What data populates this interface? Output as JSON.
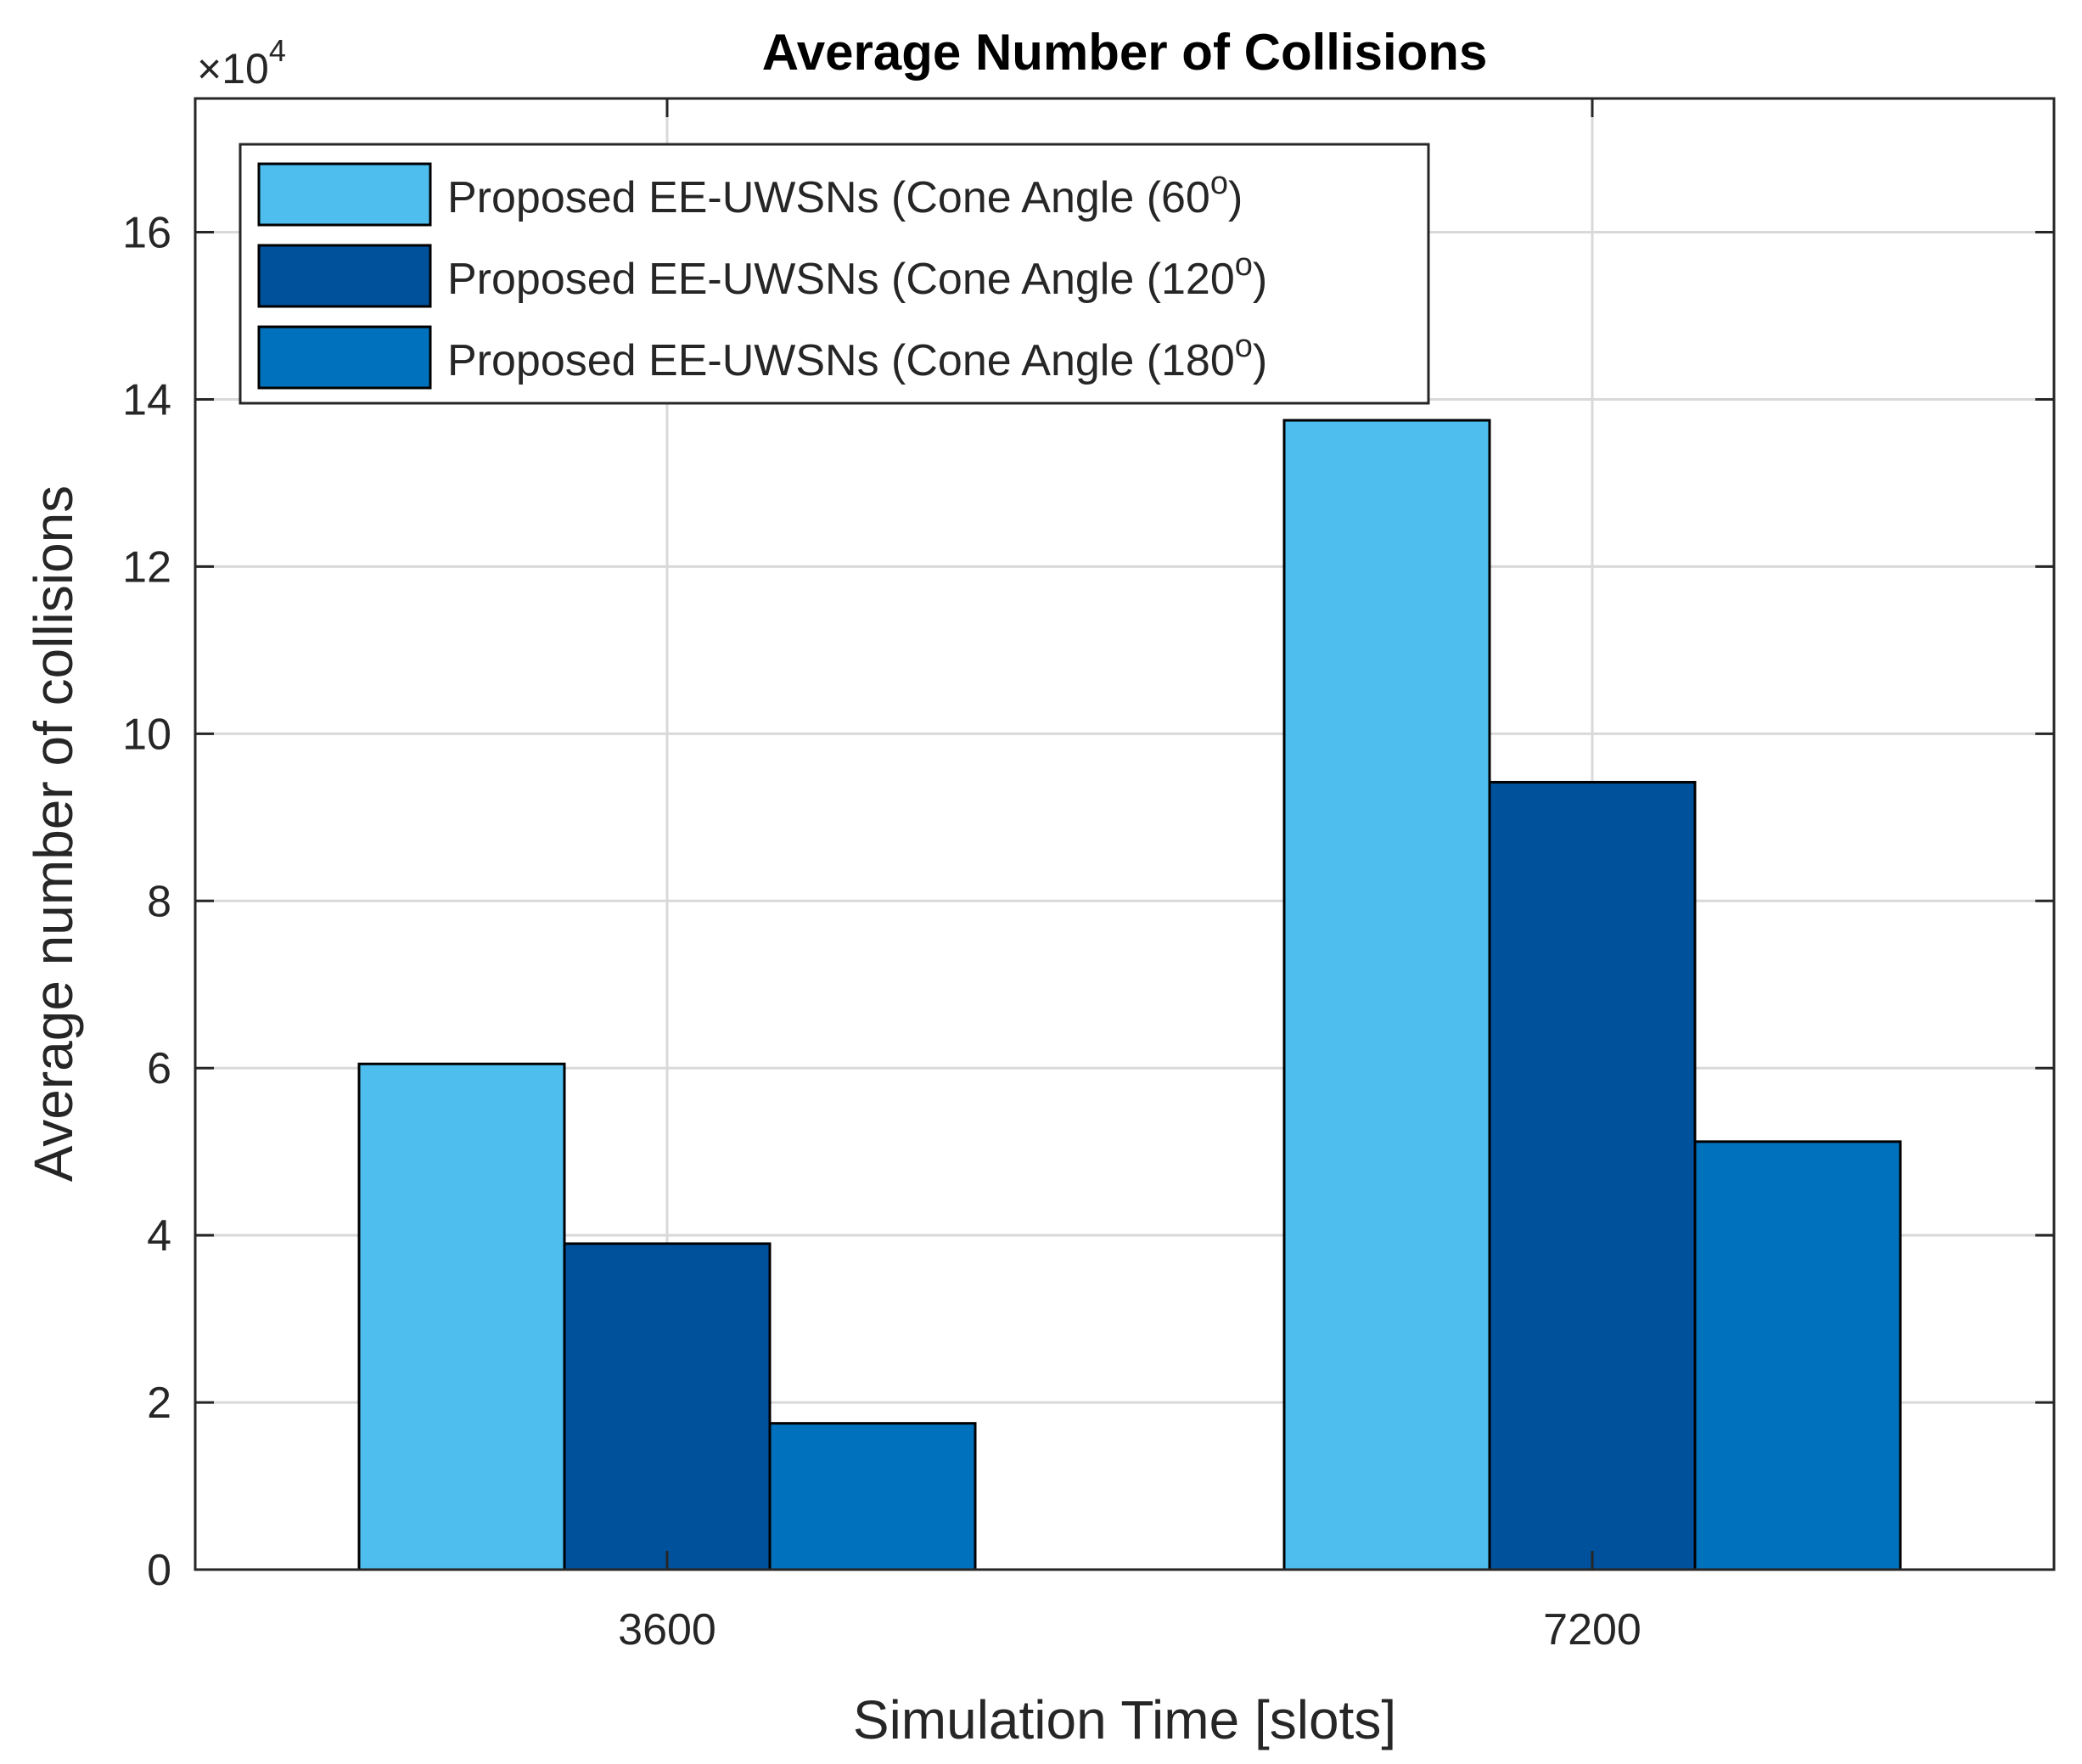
{
  "chart_data": {
    "type": "bar",
    "title": "Average Number of Collisions",
    "xlabel": "Simulation Time [slots]",
    "ylabel": "Average number of collisions",
    "y_exponent_label": "×10",
    "y_exponent_power": "4",
    "categories": [
      "3600",
      "7200"
    ],
    "ylim": [
      0,
      17.6
    ],
    "yticks": [
      0,
      2,
      4,
      6,
      8,
      10,
      12,
      14,
      16
    ],
    "ytick_labels": [
      "0",
      "2",
      "4",
      "6",
      "8",
      "10",
      "12",
      "14",
      "16"
    ],
    "grid": true,
    "legend_position": "top-left",
    "series": [
      {
        "name": "Proposed EE-UWSNs (Cone Angle (60",
        "name_sup": "o",
        "name_close": ")",
        "color": "#4dbeee",
        "values": [
          6.05,
          13.75
        ]
      },
      {
        "name": "Proposed EE-UWSNs (Cone Angle (120",
        "name_sup": "o",
        "name_close": ")",
        "color": "#00519b",
        "values": [
          3.9,
          9.42
        ]
      },
      {
        "name": "Proposed EE-UWSNs (Cone Angle (180",
        "name_sup": "o",
        "name_close": ")",
        "color": "#0072bd",
        "values": [
          1.75,
          5.12
        ]
      }
    ]
  }
}
